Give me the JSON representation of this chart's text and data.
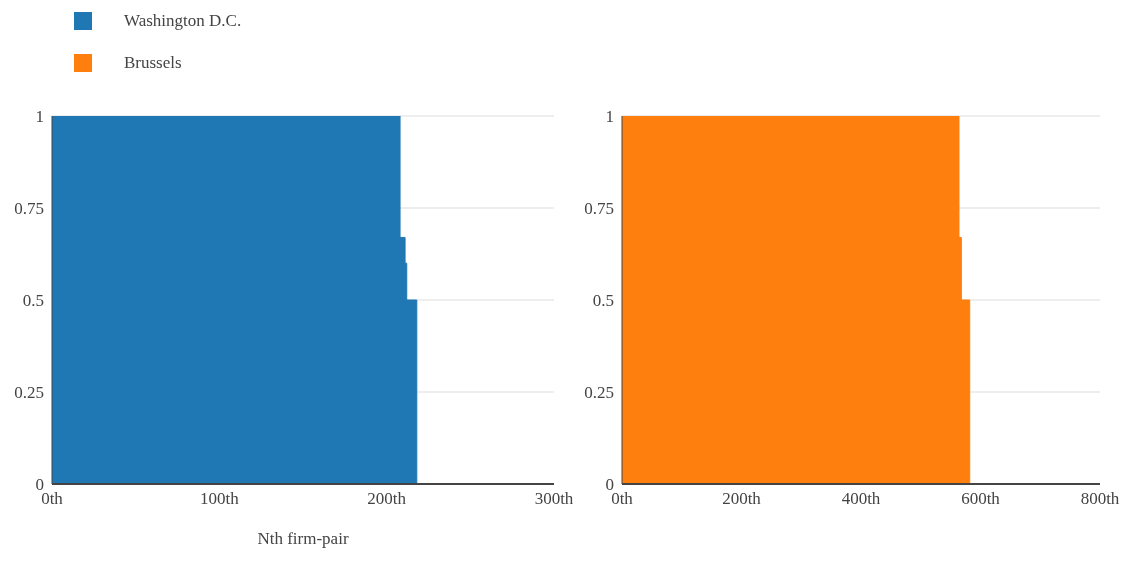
{
  "chart_data": [
    {
      "type": "area",
      "xlabel": "Nth firm-pair",
      "legend": "top left",
      "grid": "y",
      "series": [
        {
          "name": "Washington D.C.",
          "color": "#1f77b4",
          "x": [
            0,
            208,
            208,
            211,
            211,
            212,
            212,
            218,
            218
          ],
          "values": [
            1,
            1,
            0.67,
            0.67,
            0.6,
            0.6,
            0.5,
            0.5,
            0
          ]
        }
      ],
      "xlim": [
        0,
        300
      ],
      "xticks": [
        {
          "value": 0,
          "label": "0th"
        },
        {
          "value": 100,
          "label": "100th"
        },
        {
          "value": 200,
          "label": "200th"
        },
        {
          "value": 300,
          "label": "300th"
        }
      ],
      "ylim": [
        0,
        1
      ],
      "yticks": [
        0,
        0.25,
        0.5,
        0.75,
        1
      ]
    },
    {
      "type": "area",
      "legend": "top left",
      "grid": "y",
      "series": [
        {
          "name": "Brussels",
          "color": "#ff7f0e",
          "x": [
            0,
            564,
            564,
            568,
            568,
            582,
            582
          ],
          "values": [
            1,
            1,
            0.67,
            0.67,
            0.5,
            0.5,
            0
          ]
        }
      ],
      "xlim": [
        0,
        800
      ],
      "xticks": [
        {
          "value": 0,
          "label": "0th"
        },
        {
          "value": 200,
          "label": "200th"
        },
        {
          "value": 400,
          "label": "400th"
        },
        {
          "value": 600,
          "label": "600th"
        },
        {
          "value": 800,
          "label": "800th"
        }
      ],
      "ylim": [
        0,
        1
      ],
      "yticks": [
        0,
        0.25,
        0.5,
        0.75,
        1
      ]
    }
  ]
}
